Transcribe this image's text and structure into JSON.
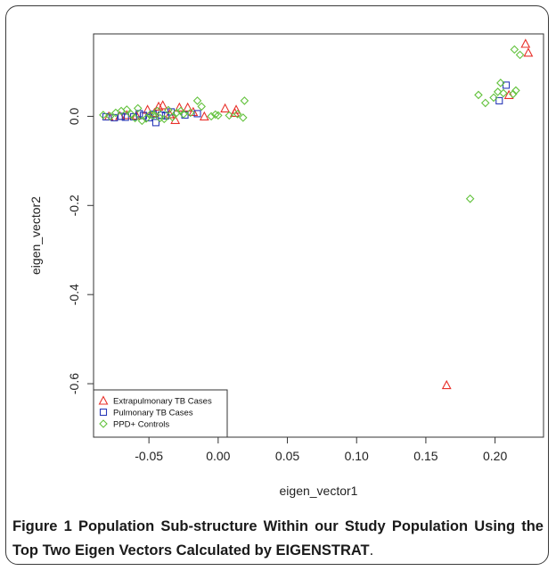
{
  "figure": {
    "label": "Figure 1",
    "title": "Population Sub-structure Within our Study Population Using the Top Two Eigen Vectors Calculated by EIGENSTRAT",
    "title_end": "."
  },
  "chart_data": {
    "type": "scatter",
    "xlabel": "eigen_vector1",
    "ylabel": "eigen_vector2",
    "xlim": [
      -0.09,
      0.235
    ],
    "ylim": [
      -0.72,
      0.185
    ],
    "x_ticks": [
      -0.05,
      0.0,
      0.05,
      0.1,
      0.15,
      0.2
    ],
    "x_tick_labels": [
      "-0.05",
      "0.00",
      "0.05",
      "0.10",
      "0.15",
      "0.20"
    ],
    "y_ticks": [
      -0.6,
      -0.4,
      -0.2,
      0.0
    ],
    "y_tick_labels": [
      "-0.6",
      "-0.4",
      "-0.2",
      "0.0"
    ],
    "grid": false,
    "legend_position": "bottom-left",
    "series": [
      {
        "name": "Extrapulmonary TB Cases",
        "marker": "triangle",
        "color": "#e8302a",
        "points": [
          [
            -0.079,
            0.0
          ],
          [
            -0.071,
            0.001
          ],
          [
            -0.066,
            0.003
          ],
          [
            -0.059,
            0.002
          ],
          [
            -0.051,
            0.015
          ],
          [
            -0.046,
            0.008
          ],
          [
            -0.043,
            0.022
          ],
          [
            -0.04,
            0.025
          ],
          [
            -0.035,
            0.005
          ],
          [
            -0.031,
            -0.008
          ],
          [
            -0.028,
            0.02
          ],
          [
            -0.022,
            0.02
          ],
          [
            -0.018,
            0.01
          ],
          [
            -0.01,
            0.0
          ],
          [
            0.005,
            0.018
          ],
          [
            0.013,
            0.015
          ],
          [
            0.012,
            0.008
          ],
          [
            0.165,
            -0.603
          ],
          [
            0.21,
            0.048
          ],
          [
            0.222,
            0.163
          ],
          [
            0.224,
            0.143
          ]
        ]
      },
      {
        "name": "Pulmonary TB Cases",
        "marker": "square",
        "color": "#2a3ab8",
        "points": [
          [
            -0.081,
            -0.001
          ],
          [
            -0.075,
            -0.003
          ],
          [
            -0.07,
            0.0
          ],
          [
            -0.067,
            -0.002
          ],
          [
            -0.061,
            -0.001
          ],
          [
            -0.057,
            0.006
          ],
          [
            -0.054,
            0.002
          ],
          [
            -0.05,
            -0.003
          ],
          [
            -0.047,
            0.005
          ],
          [
            -0.045,
            -0.014
          ],
          [
            -0.041,
            0.003
          ],
          [
            -0.038,
            0.001
          ],
          [
            -0.034,
            0.01
          ],
          [
            -0.024,
            0.003
          ],
          [
            -0.015,
            0.006
          ],
          [
            0.203,
            0.035
          ],
          [
            0.208,
            0.07
          ]
        ]
      },
      {
        "name": "PPD+ Controls",
        "marker": "diamond",
        "color": "#62c23c",
        "points": [
          [
            -0.083,
            0.003
          ],
          [
            -0.078,
            0.0
          ],
          [
            -0.074,
            0.008
          ],
          [
            -0.07,
            0.012
          ],
          [
            -0.066,
            0.015
          ],
          [
            -0.063,
            0.005
          ],
          [
            -0.06,
            -0.004
          ],
          [
            -0.058,
            0.018
          ],
          [
            -0.055,
            -0.01
          ],
          [
            -0.052,
            -0.005
          ],
          [
            -0.049,
            0.004
          ],
          [
            -0.047,
            0.002
          ],
          [
            -0.044,
            0.012
          ],
          [
            -0.042,
            -0.004
          ],
          [
            -0.039,
            -0.006
          ],
          [
            -0.036,
            0.014
          ],
          [
            -0.033,
            -0.002
          ],
          [
            -0.03,
            0.008
          ],
          [
            -0.027,
            0.012
          ],
          [
            -0.025,
            0.005
          ],
          [
            -0.02,
            0.008
          ],
          [
            -0.015,
            0.035
          ],
          [
            -0.012,
            0.022
          ],
          [
            -0.005,
            0.0
          ],
          [
            -0.002,
            0.004
          ],
          [
            0.0,
            0.002
          ],
          [
            0.008,
            0.002
          ],
          [
            0.014,
            0.005
          ],
          [
            0.018,
            -0.003
          ],
          [
            0.019,
            0.035
          ],
          [
            0.182,
            -0.185
          ],
          [
            0.188,
            0.048
          ],
          [
            0.193,
            0.03
          ],
          [
            0.199,
            0.042
          ],
          [
            0.202,
            0.055
          ],
          [
            0.204,
            0.075
          ],
          [
            0.206,
            0.052
          ],
          [
            0.213,
            0.05
          ],
          [
            0.215,
            0.058
          ],
          [
            0.214,
            0.15
          ],
          [
            0.218,
            0.138
          ]
        ]
      }
    ]
  }
}
